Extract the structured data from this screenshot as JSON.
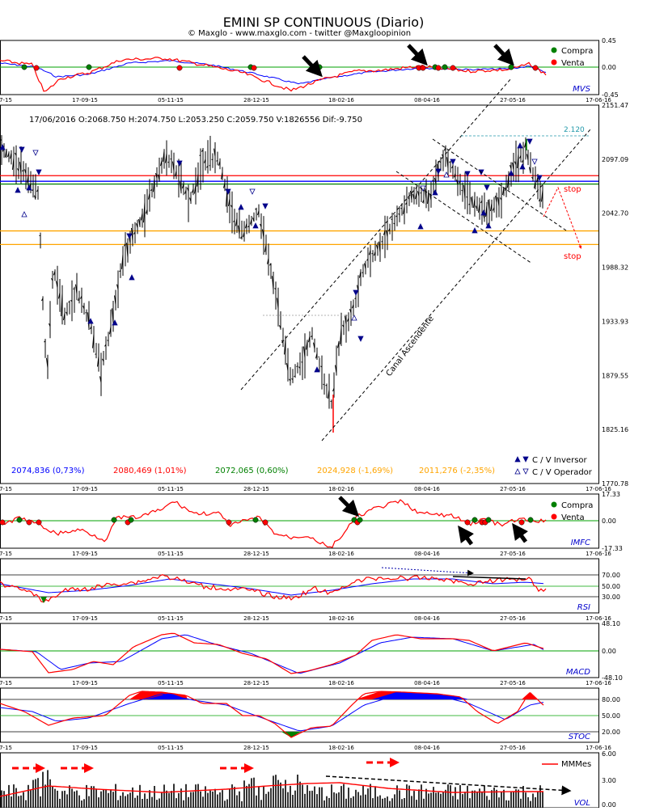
{
  "header": {
    "title": "EMINI SP CONTINUOUS (Diario)",
    "subtitle": "© Maxglo - www.maxglo.com - twitter @Maxgloopinion"
  },
  "colors": {
    "price": "#000000",
    "red": "#ff0000",
    "blue": "#0000ff",
    "green": "#008000",
    "orange": "#ffa500",
    "navy": "#00008b",
    "panel_label": "#0000cc",
    "grid_green": "#00a000"
  },
  "date_ticks": [
    "7-15",
    "17-09-15",
    "05-11-15",
    "28-12-15",
    "18-02-16",
    "08-04-16",
    "27-05-16",
    "17-06-16"
  ],
  "legend": {
    "buy": "Compra",
    "sell": "Venta"
  },
  "panels": {
    "mvs": {
      "label": "MVS",
      "ticks": [
        "0.45",
        "0.00",
        "-0.45"
      ]
    },
    "imfc": {
      "label": "IMFC",
      "ticks": [
        "17.33",
        "0.00",
        "-17.33"
      ]
    },
    "rsi": {
      "label": "RSI",
      "ticks": [
        "70.00",
        "50.00",
        "30.00"
      ]
    },
    "macd": {
      "label": "MACD",
      "ticks": [
        "48.10",
        "0.00",
        "-48.10"
      ]
    },
    "stoc": {
      "label": "STOC",
      "ticks": [
        "80.00",
        "50.00",
        "20.00"
      ]
    },
    "vol": {
      "label": "VOL",
      "ticks": [
        "6.00",
        "3.00",
        "0.00"
      ],
      "legend": "MMMes"
    }
  },
  "chart_data": {
    "type": "candlestick",
    "title": "EMINI SP CONTINUOUS (Diario)",
    "info_line": "17/06/2016  O:2068.750  H:2074.750  L:2053.250  C:2059.750  V:1826556  Dif:-9.750",
    "ylim": [
      1770.78,
      2151.47
    ],
    "y_ticks": [
      "2151.47",
      "2097.09",
      "2042.70",
      "1988.32",
      "1933.93",
      "1879.55",
      "1825.16",
      "1770.78"
    ],
    "last_bar": {
      "date": "17/06/2016",
      "open": 2068.75,
      "high": 2074.75,
      "low": 2053.25,
      "close": 2059.75,
      "volume": 1826556,
      "dif": -9.75
    },
    "close_path": [
      [
        "7-15",
        2100
      ],
      [
        "17-09-15",
        1935
      ],
      [
        "05-11-15",
        2095
      ],
      [
        "28-12-15",
        2045
      ],
      [
        "18-02-16",
        1890
      ],
      [
        "08-04-16",
        2050
      ],
      [
        "27-05-16",
        2090
      ],
      [
        "17-06-16",
        2059.75
      ]
    ],
    "levels": [
      {
        "value": 2074.836,
        "pct": "0,73%",
        "color": "#0000ff",
        "label": "2074,836 (0,73%)"
      },
      {
        "value": 2080.469,
        "pct": "1,01%",
        "color": "#ff0000",
        "label": "2080,469 (1,01%)"
      },
      {
        "value": 2072.065,
        "pct": "0,60%",
        "color": "#008000",
        "label": "2072,065 (0,60%)"
      },
      {
        "value": 2024.928,
        "pct": "-1,69%",
        "color": "#ffa500",
        "label": "2024,928 (-1,69%)"
      },
      {
        "value": 2011.276,
        "pct": "-2,35%",
        "color": "#ffa500",
        "label": "2011,276 (-2,35%)"
      }
    ],
    "annotations": {
      "target": "2.120",
      "channel": "Canal Ascendente",
      "stop_upper": "stop",
      "stop_lower": "stop"
    },
    "legend": {
      "inversor": "C / V Inversor",
      "operador": "C / V Operador"
    }
  }
}
